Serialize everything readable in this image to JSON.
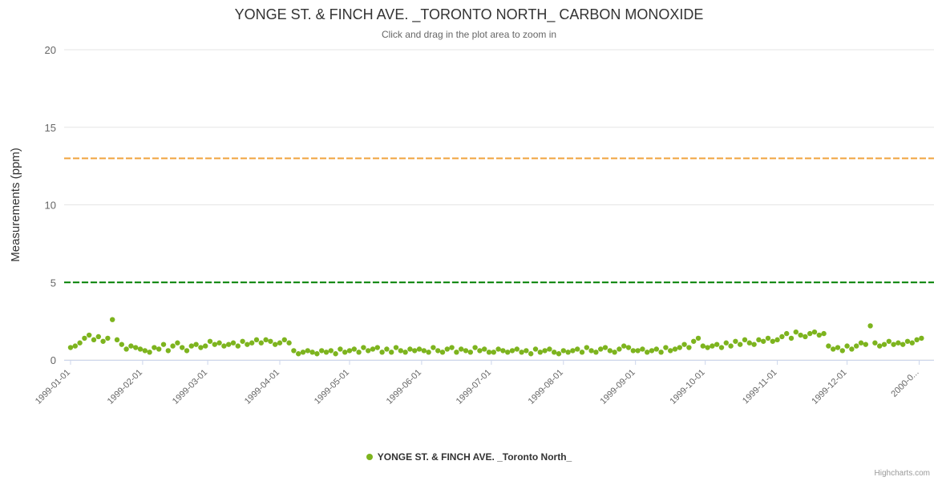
{
  "title": "YONGE ST. & FINCH AVE. _TORONTO NORTH_ CARBON MONOXIDE",
  "subtitle": "Click and drag in the plot area to zoom in",
  "credits": "Highcharts.com",
  "colors": {
    "series": "#7DB41E",
    "warn_line": "#F0A33C",
    "safe_line": "#008000",
    "grid": "#e6e6e6",
    "axis_line": "#ccd6eb",
    "title": "#333333",
    "subtitle": "#666666",
    "axis_label": "#666666",
    "yaxis_title": "#333333"
  },
  "chart_data": {
    "type": "scatter",
    "title": "YONGE ST. & FINCH AVE. _TORONTO NORTH_ CARBON MONOXIDE",
    "subtitle": "Click and drag in the plot area to zoom in",
    "ylabel": "Measurements (ppm)",
    "xlabel": "",
    "ylim": [
      0,
      20
    ],
    "y_ticks": [
      0,
      5,
      10,
      15,
      20
    ],
    "grid": true,
    "legend_position": "bottom-center",
    "x_tick_labels": [
      "1999-01-01",
      "1999-02-01",
      "1999-03-01",
      "1999-04-01",
      "1999-05-01",
      "1999-06-01",
      "1999-07-01",
      "1999-08-01",
      "1999-09-01",
      "1999-10-01",
      "1999-11-01",
      "1999-12-01",
      "2000-0..."
    ],
    "tick_day_offsets": [
      0,
      31,
      59,
      90,
      120,
      151,
      181,
      212,
      243,
      273,
      304,
      334,
      365
    ],
    "plot_lines": [
      {
        "name": "upper-threshold",
        "value": 13,
        "color": "#F0A33C",
        "style": "dashed"
      },
      {
        "name": "lower-threshold",
        "value": 5,
        "color": "#008000",
        "style": "dashed"
      }
    ],
    "series": [
      {
        "name": "YONGE ST. & FINCH AVE. _Toronto North_",
        "color": "#7DB41E",
        "start_date": "1999-01-01",
        "interval_days": 2,
        "unit": "ppm",
        "values": [
          0.8,
          0.9,
          1.1,
          1.4,
          1.6,
          1.3,
          1.5,
          1.2,
          1.4,
          2.6,
          1.3,
          1.0,
          0.7,
          0.9,
          0.8,
          0.7,
          0.6,
          0.5,
          0.8,
          0.7,
          1.0,
          0.6,
          0.9,
          1.1,
          0.8,
          0.6,
          0.9,
          1.0,
          0.8,
          0.9,
          1.2,
          1.0,
          1.1,
          0.9,
          1.0,
          1.1,
          0.9,
          1.2,
          1.0,
          1.1,
          1.3,
          1.1,
          1.3,
          1.2,
          1.0,
          1.1,
          1.3,
          1.1,
          0.6,
          0.4,
          0.5,
          0.6,
          0.5,
          0.4,
          0.6,
          0.5,
          0.6,
          0.4,
          0.7,
          0.5,
          0.6,
          0.7,
          0.5,
          0.8,
          0.6,
          0.7,
          0.8,
          0.5,
          0.7,
          0.5,
          0.8,
          0.6,
          0.5,
          0.7,
          0.6,
          0.7,
          0.6,
          0.5,
          0.8,
          0.6,
          0.5,
          0.7,
          0.8,
          0.5,
          0.7,
          0.6,
          0.5,
          0.8,
          0.6,
          0.7,
          0.5,
          0.5,
          0.7,
          0.6,
          0.5,
          0.6,
          0.7,
          0.5,
          0.6,
          0.4,
          0.7,
          0.5,
          0.6,
          0.7,
          0.5,
          0.4,
          0.6,
          0.5,
          0.6,
          0.7,
          0.5,
          0.8,
          0.6,
          0.5,
          0.7,
          0.8,
          0.6,
          0.5,
          0.7,
          0.9,
          0.8,
          0.6,
          0.6,
          0.7,
          0.5,
          0.6,
          0.7,
          0.5,
          0.8,
          0.6,
          0.7,
          0.8,
          1.0,
          0.8,
          1.2,
          1.4,
          0.9,
          0.8,
          0.9,
          1.0,
          0.8,
          1.1,
          0.9,
          1.2,
          1.0,
          1.3,
          1.1,
          1.0,
          1.3,
          1.2,
          1.4,
          1.2,
          1.3,
          1.5,
          1.7,
          1.4,
          1.8,
          1.6,
          1.5,
          1.7,
          1.8,
          1.6,
          1.7,
          0.9,
          0.7,
          0.8,
          0.6,
          0.9,
          0.7,
          0.9,
          1.1,
          1.0,
          2.2,
          1.1,
          0.9,
          1.0,
          1.2,
          1.0,
          1.1,
          1.0,
          1.2,
          1.1,
          1.3,
          1.4
        ]
      }
    ]
  }
}
